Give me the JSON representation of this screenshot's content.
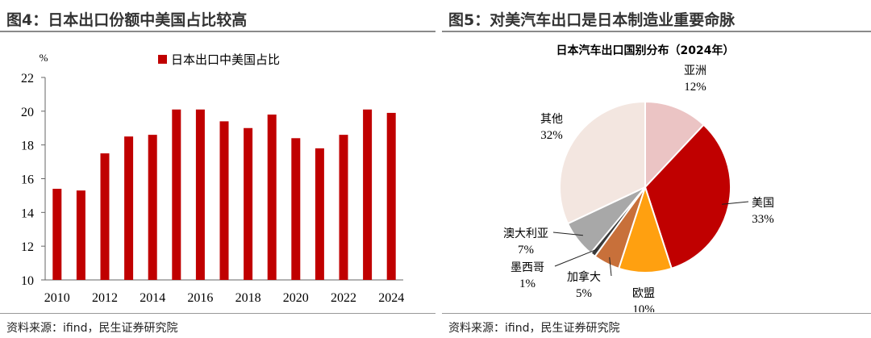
{
  "left": {
    "title": "图4：日本出口份额中美国占比较高",
    "source": "资料来源：ifind，民生证券研究院",
    "chart_data": {
      "type": "bar",
      "unit": "%",
      "categories": [
        "2010",
        "2011",
        "2012",
        "2013",
        "2014",
        "2015",
        "2016",
        "2017",
        "2018",
        "2019",
        "2020",
        "2021",
        "2022",
        "2023",
        "2024"
      ],
      "x_tick_labels": [
        "2010",
        "2012",
        "2014",
        "2016",
        "2018",
        "2020",
        "2022",
        "2024"
      ],
      "series": [
        {
          "name": "日本出口中美国占比",
          "values": [
            15.4,
            15.3,
            17.5,
            18.5,
            18.6,
            20.1,
            20.1,
            19.4,
            19.0,
            19.8,
            18.4,
            17.8,
            18.6,
            20.1,
            19.9
          ]
        }
      ],
      "ylim": [
        10,
        22
      ],
      "yticks": [
        10,
        12,
        14,
        16,
        18,
        20,
        22
      ],
      "legend": "top",
      "bar_color": "#c00000",
      "grid": false
    }
  },
  "right": {
    "title": "图5：对美汽车出口是日本制造业重要命脉",
    "source": "资料来源：ifind，民生证券研究院",
    "chart_data": {
      "type": "pie",
      "title": "日本汽车出口国别分布（2024年）",
      "slices": [
        {
          "label": "亚洲",
          "value": 12,
          "pct": "12%",
          "color": "#ebc4c4"
        },
        {
          "label": "美国",
          "value": 33,
          "pct": "33%",
          "color": "#c00000"
        },
        {
          "label": "欧盟",
          "value": 10,
          "pct": "10%",
          "color": "#ffa010"
        },
        {
          "label": "加拿大",
          "value": 5,
          "pct": "5%",
          "color": "#c8703a"
        },
        {
          "label": "墨西哥",
          "value": 1,
          "pct": "1%",
          "color": "#3a3a3a"
        },
        {
          "label": "澳大利亚",
          "value": 7,
          "pct": "7%",
          "color": "#a8a8a8"
        },
        {
          "label": "其他",
          "value": 32,
          "pct": "32%",
          "color": "#f3e6e0"
        }
      ]
    }
  }
}
